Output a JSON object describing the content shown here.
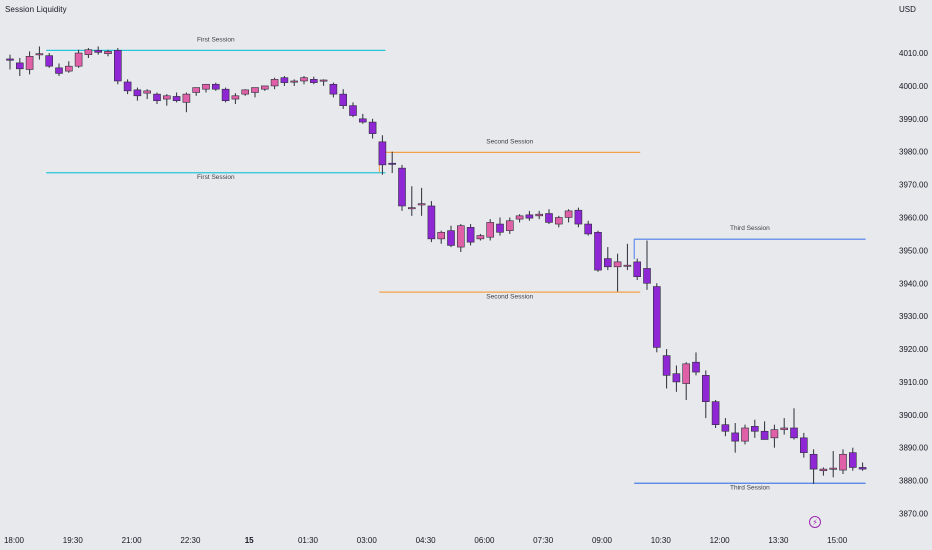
{
  "header": {
    "indicator_title": "Session Liquidity",
    "currency": "USD"
  },
  "chart_data": {
    "type": "candlestick",
    "title": "Session Liquidity",
    "y_unit": "USD",
    "ylim": [
      3866,
      4015
    ],
    "y_ticks": [
      4010,
      4000,
      3990,
      3980,
      3970,
      3960,
      3950,
      3940,
      3930,
      3920,
      3910,
      3900,
      3890,
      3880,
      3870
    ],
    "x_ticks": [
      {
        "label": "18:00",
        "index": 0,
        "bold": false
      },
      {
        "label": "19:30",
        "index": 6,
        "bold": false
      },
      {
        "label": "21:00",
        "index": 12,
        "bold": false
      },
      {
        "label": "22:30",
        "index": 18,
        "bold": false
      },
      {
        "label": "15",
        "index": 24,
        "bold": true
      },
      {
        "label": "01:30",
        "index": 30,
        "bold": false
      },
      {
        "label": "03:00",
        "index": 36,
        "bold": false
      },
      {
        "label": "04:30",
        "index": 42,
        "bold": false
      },
      {
        "label": "06:00",
        "index": 48,
        "bold": false
      },
      {
        "label": "07:30",
        "index": 54,
        "bold": false
      },
      {
        "label": "09:00",
        "index": 60,
        "bold": false
      },
      {
        "label": "10:30",
        "index": 66,
        "bold": false
      },
      {
        "label": "12:00",
        "index": 72,
        "bold": false
      },
      {
        "label": "13:30",
        "index": 78,
        "bold": false
      },
      {
        "label": "15:00",
        "index": 84,
        "bold": false
      }
    ],
    "grid": false,
    "candle_colors": {
      "up": "#e060a8",
      "down": "#8f28d4",
      "wick": "#2a2e39"
    },
    "candles": [
      [
        4008.2,
        4009.5,
        4005.0,
        4007.8
      ],
      [
        4007.0,
        4008.5,
        4003.0,
        4005.2
      ],
      [
        4005.0,
        4010.5,
        4003.5,
        4009.0
      ],
      [
        4009.5,
        4012.0,
        4008.0,
        4009.8
      ],
      [
        4009.2,
        4010.0,
        4005.5,
        4006.0
      ],
      [
        4005.5,
        4006.8,
        4003.0,
        4003.8
      ],
      [
        4004.5,
        4007.5,
        4004.0,
        4006.0
      ],
      [
        4006.0,
        4011.0,
        4005.5,
        4010.0
      ],
      [
        4009.5,
        4011.5,
        4008.5,
        4011.0
      ],
      [
        4010.8,
        4012.0,
        4009.5,
        4010.2
      ],
      [
        4009.8,
        4011.0,
        4009.0,
        4010.5
      ],
      [
        4010.8,
        4011.5,
        4000.5,
        4001.5
      ],
      [
        4001.2,
        4002.0,
        3997.5,
        3998.5
      ],
      [
        3998.8,
        3999.5,
        3995.5,
        3997.0
      ],
      [
        3997.8,
        3999.0,
        3996.0,
        3998.5
      ],
      [
        3997.5,
        3998.0,
        3994.5,
        3995.5
      ],
      [
        3996.0,
        3997.5,
        3994.0,
        3997.0
      ],
      [
        3996.8,
        3998.0,
        3995.0,
        3995.5
      ],
      [
        3995.0,
        3998.0,
        3992.0,
        3997.5
      ],
      [
        3998.0,
        3999.5,
        3997.0,
        3999.5
      ],
      [
        3999.0,
        4000.5,
        3998.0,
        4000.5
      ],
      [
        4000.5,
        4001.0,
        3998.5,
        3999.0
      ],
      [
        3999.0,
        3999.5,
        3995.0,
        3995.5
      ],
      [
        3996.0,
        3997.8,
        3994.5,
        3997.0
      ],
      [
        3997.5,
        3999.0,
        3997.0,
        3998.8
      ],
      [
        3998.0,
        3999.5,
        3996.5,
        3999.5
      ],
      [
        3999.0,
        4000.0,
        3998.5,
        4000.0
      ],
      [
        4000.0,
        4002.5,
        3999.0,
        4002.0
      ],
      [
        4002.5,
        4003.0,
        4000.0,
        4001.0
      ],
      [
        4001.2,
        4002.0,
        4000.0,
        4001.5
      ],
      [
        4001.5,
        4003.0,
        4000.5,
        4002.5
      ],
      [
        4002.0,
        4002.8,
        4000.5,
        4001.0
      ],
      [
        4001.5,
        4002.0,
        4000.0,
        4001.8
      ],
      [
        4000.5,
        4001.0,
        3996.5,
        3997.5
      ],
      [
        3997.5,
        3999.0,
        3993.0,
        3994.0
      ],
      [
        3994.0,
        3995.0,
        3990.5,
        3991.0
      ],
      [
        3990.0,
        3991.5,
        3988.5,
        3989.0
      ],
      [
        3989.0,
        3990.0,
        3984.0,
        3985.5
      ],
      [
        3983.0,
        3985.0,
        3973.0,
        3976.0
      ],
      [
        3976.5,
        3980.0,
        3973.5,
        3976.2
      ],
      [
        3975.0,
        3976.0,
        3962.0,
        3963.5
      ],
      [
        3963.0,
        3969.5,
        3960.5,
        3963.0
      ],
      [
        3963.8,
        3969.0,
        3960.5,
        3964.2
      ],
      [
        3963.5,
        3965.0,
        3952.5,
        3953.5
      ],
      [
        3953.5,
        3956.0,
        3952.0,
        3955.5
      ],
      [
        3956.0,
        3957.5,
        3951.0,
        3951.5
      ],
      [
        3951.0,
        3958.0,
        3949.5,
        3957.5
      ],
      [
        3957.0,
        3958.0,
        3951.5,
        3952.5
      ],
      [
        3953.5,
        3955.0,
        3953.0,
        3954.5
      ],
      [
        3954.0,
        3959.5,
        3953.0,
        3958.5
      ],
      [
        3958.0,
        3960.0,
        3954.5,
        3955.5
      ],
      [
        3956.0,
        3960.0,
        3955.0,
        3959.0
      ],
      [
        3959.5,
        3961.0,
        3958.5,
        3960.5
      ],
      [
        3960.8,
        3962.0,
        3959.0,
        3959.8
      ],
      [
        3960.5,
        3962.0,
        3959.5,
        3961.0
      ],
      [
        3961.2,
        3962.5,
        3958.0,
        3958.5
      ],
      [
        3958.0,
        3960.5,
        3957.0,
        3960.0
      ],
      [
        3960.0,
        3962.5,
        3958.5,
        3962.0
      ],
      [
        3962.2,
        3963.0,
        3957.0,
        3958.0
      ],
      [
        3958.0,
        3959.0,
        3954.5,
        3955.0
      ],
      [
        3955.5,
        3956.0,
        3943.5,
        3944.0
      ],
      [
        3947.5,
        3951.0,
        3944.0,
        3945.0
      ],
      [
        3945.0,
        3949.0,
        3937.5,
        3946.5
      ],
      [
        3945.5,
        3952.0,
        3944.0,
        3945.5
      ],
      [
        3946.5,
        3947.5,
        3941.0,
        3942.0
      ],
      [
        3944.5,
        3953.0,
        3938.0,
        3940.0
      ],
      [
        3939.0,
        3940.0,
        3919.0,
        3920.5
      ],
      [
        3918.0,
        3920.0,
        3908.0,
        3912.0
      ],
      [
        3912.5,
        3915.0,
        3907.0,
        3910.0
      ],
      [
        3909.5,
        3916.0,
        3904.5,
        3915.5
      ],
      [
        3916.0,
        3919.0,
        3912.0,
        3913.0
      ],
      [
        3912.0,
        3913.5,
        3899.0,
        3904.0
      ],
      [
        3904.0,
        3904.5,
        3896.0,
        3897.0
      ],
      [
        3897.0,
        3899.0,
        3893.5,
        3895.0
      ],
      [
        3894.5,
        3897.5,
        3888.5,
        3892.0
      ],
      [
        3892.0,
        3897.0,
        3891.0,
        3896.0
      ],
      [
        3896.5,
        3898.5,
        3893.0,
        3895.0
      ],
      [
        3895.0,
        3898.0,
        3893.0,
        3892.5
      ],
      [
        3893.0,
        3897.0,
        3890.0,
        3895.5
      ],
      [
        3895.5,
        3899.0,
        3894.0,
        3896.0
      ],
      [
        3896.0,
        3902.0,
        3892.5,
        3893.0
      ],
      [
        3893.0,
        3894.5,
        3887.0,
        3888.5
      ],
      [
        3888.0,
        3889.5,
        3879.0,
        3883.5
      ],
      [
        3883.0,
        3884.0,
        3881.5,
        3883.5
      ],
      [
        3883.5,
        3889.0,
        3881.0,
        3883.8
      ],
      [
        3883.2,
        3889.5,
        3882.0,
        3888.0
      ],
      [
        3888.5,
        3890.0,
        3883.0,
        3884.0
      ],
      [
        3884.0,
        3885.5,
        3883.0,
        3883.5
      ]
    ],
    "sessions": [
      {
        "label": "First Session",
        "high": 4010.8,
        "low": 3973.6,
        "start_index": 4,
        "end_index": 38,
        "color": "#26c6da"
      },
      {
        "label": "Second Session",
        "high": 3979.8,
        "low": 3937.3,
        "start_index": 38,
        "end_index": 64,
        "color": "#f2a14a"
      },
      {
        "label": "Third Session",
        "high": 3953.4,
        "low": 3879.2,
        "start_index": 64,
        "end_index": 87,
        "color": "#4a7ee8"
      }
    ]
  }
}
